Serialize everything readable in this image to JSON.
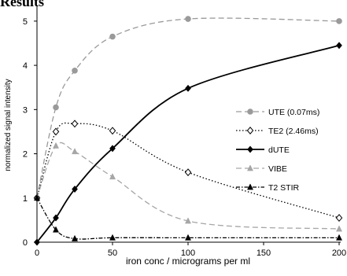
{
  "page": {
    "heading": "Results"
  },
  "chart_data": {
    "type": "line",
    "title": "",
    "xlabel": "iron conc / micrograms per ml",
    "ylabel": "normalized signal intensity",
    "xlim": [
      0,
      200
    ],
    "ylim": [
      0,
      5.3
    ],
    "x_ticks": [
      0,
      50,
      100,
      150,
      200
    ],
    "y_ticks": [
      0,
      1,
      2,
      3,
      4,
      5
    ],
    "grid": false,
    "legend_position": "right",
    "series": [
      {
        "name": "UTE (0.07ms)",
        "color": "#9a9a9a",
        "line_style": "dashed",
        "marker": "circle",
        "x": [
          0,
          12.5,
          25,
          50,
          100,
          200
        ],
        "y": [
          1.0,
          3.05,
          3.88,
          4.65,
          5.05,
          5.0
        ]
      },
      {
        "name": "TE2 (2.46ms)",
        "color": "#000000",
        "line_style": "dotted",
        "marker": "open-diamond",
        "x": [
          0,
          12.5,
          25,
          50,
          100,
          200
        ],
        "y": [
          1.0,
          2.5,
          2.68,
          2.52,
          1.58,
          0.55
        ]
      },
      {
        "name": "dUTE",
        "color": "#000000",
        "line_style": "solid",
        "marker": "diamond",
        "x": [
          0,
          12.5,
          25,
          50,
          100,
          200
        ],
        "y": [
          0.0,
          0.55,
          1.2,
          2.12,
          3.48,
          4.45
        ]
      },
      {
        "name": "VIBE",
        "color": "#a6a6a6",
        "line_style": "dashed",
        "marker": "triangle",
        "x": [
          0,
          12.5,
          25,
          50,
          100,
          200
        ],
        "y": [
          1.0,
          2.18,
          2.05,
          1.48,
          0.48,
          0.3
        ]
      },
      {
        "name": "T2 STIR",
        "color": "#000000",
        "line_style": "dash-dot",
        "marker": "triangle",
        "x": [
          0,
          12.5,
          25,
          50,
          100,
          200
        ],
        "y": [
          1.0,
          0.28,
          0.08,
          0.1,
          0.1,
          0.1
        ]
      }
    ]
  }
}
